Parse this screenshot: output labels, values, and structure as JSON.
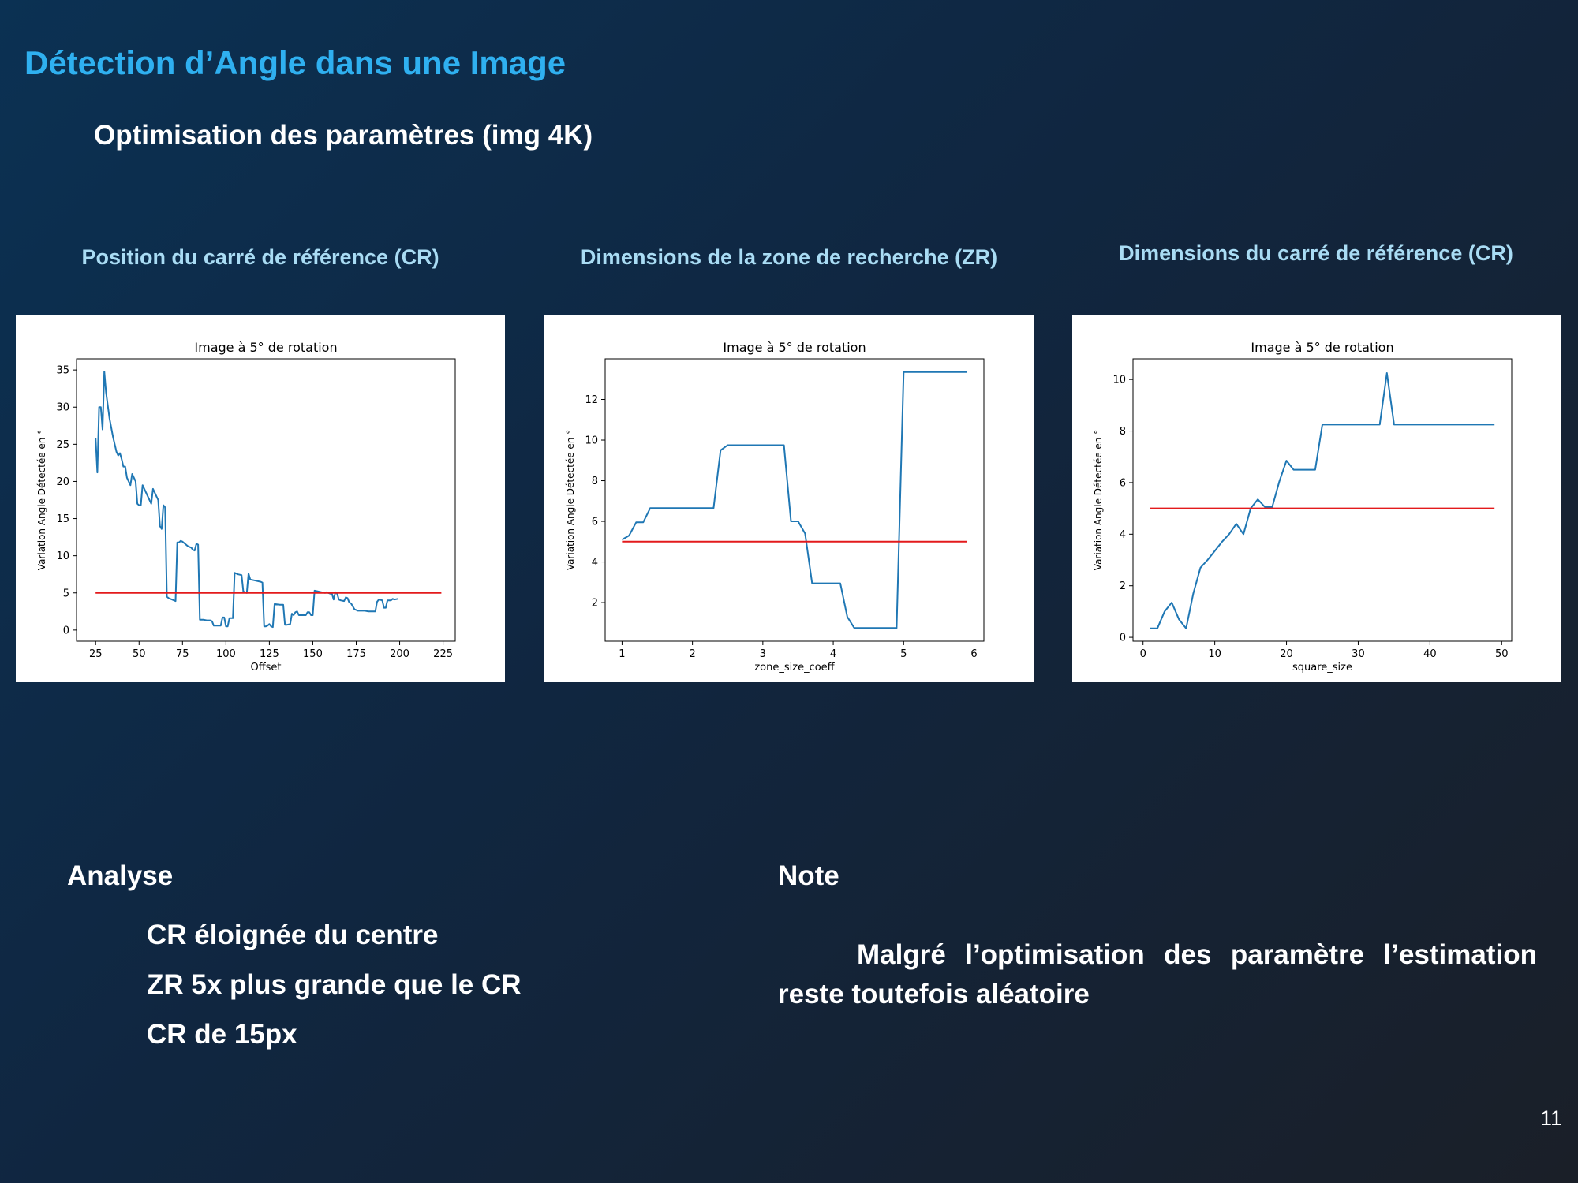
{
  "slide": {
    "title": "Détection d’Angle dans une Image",
    "subtitle": "Optimisation des paramètres (img 4K)",
    "page_number": "11"
  },
  "panels": [
    {
      "heading": "Position du carré de référence (CR)"
    },
    {
      "heading": "Dimensions de la zone de recherche (ZR)"
    },
    {
      "heading": "Dimensions du carré de référence (CR)"
    }
  ],
  "analysis": {
    "heading": "Analyse",
    "items": [
      "CR éloignée du centre",
      "ZR 5x plus grande que le CR",
      "CR de 15px"
    ]
  },
  "note": {
    "heading": "Note",
    "text": "Malgré l’optimisation des paramètre l’estimation reste toutefois aléatoire"
  },
  "colors": {
    "background_start": "#0b3153",
    "background_end": "#1a1f28",
    "title": "#2fb0f0",
    "panel_heading": "#a9dcf4",
    "series_line": "#1f77b4",
    "reference_line": "#e31a1c"
  },
  "chart_data": [
    {
      "type": "line",
      "title": "Image à 5° de rotation",
      "xlabel": "Offset",
      "ylabel": "Variation Angle Détectée en °",
      "xlim": [
        14,
        232
      ],
      "ylim": [
        -1.5,
        36.5
      ],
      "xticks": [
        25,
        50,
        75,
        100,
        125,
        150,
        175,
        200,
        225
      ],
      "yticks": [
        0,
        5,
        10,
        15,
        20,
        25,
        30,
        35
      ],
      "grid": false,
      "series": [
        {
          "role": "measured",
          "color": "#1f77b4",
          "points": [
            [
              25,
              25.8
            ],
            [
              26,
              21.2
            ],
            [
              27,
              30
            ],
            [
              28,
              30
            ],
            [
              29,
              27
            ],
            [
              30,
              34.8
            ],
            [
              31,
              32
            ],
            [
              33,
              28.5
            ],
            [
              35,
              26
            ],
            [
              37,
              24
            ],
            [
              38,
              23.5
            ],
            [
              39,
              23.8
            ],
            [
              40,
              23
            ],
            [
              41,
              22
            ],
            [
              42,
              22
            ],
            [
              43,
              20.5
            ],
            [
              44,
              20
            ],
            [
              45,
              19.5
            ],
            [
              46,
              21
            ],
            [
              47,
              20.5
            ],
            [
              48,
              20
            ],
            [
              49,
              17
            ],
            [
              50,
              16.8
            ],
            [
              51,
              16.8
            ],
            [
              52,
              19.5
            ],
            [
              53,
              19
            ],
            [
              55,
              18
            ],
            [
              57,
              17
            ],
            [
              58,
              19
            ],
            [
              59,
              18.5
            ],
            [
              60,
              18
            ],
            [
              61,
              17.5
            ],
            [
              62,
              14
            ],
            [
              63,
              13.6
            ],
            [
              64,
              16.8
            ],
            [
              65,
              16.5
            ],
            [
              66,
              4.5
            ],
            [
              67,
              4.3
            ],
            [
              69,
              4.1
            ],
            [
              71,
              3.9
            ],
            [
              72,
              11.8
            ],
            [
              73,
              11.8
            ],
            [
              74,
              12
            ],
            [
              75,
              11.9
            ],
            [
              76,
              11.7
            ],
            [
              77,
              11.5
            ],
            [
              78,
              11.3
            ],
            [
              79,
              11.2
            ],
            [
              80,
              11.1
            ],
            [
              81,
              10.8
            ],
            [
              82,
              10.7
            ],
            [
              83,
              11.6
            ],
            [
              84,
              11.5
            ],
            [
              85,
              1.4
            ],
            [
              87,
              1.4
            ],
            [
              89,
              1.3
            ],
            [
              91,
              1.3
            ],
            [
              92,
              1.2
            ],
            [
              93,
              0.6
            ],
            [
              95,
              0.6
            ],
            [
              97,
              0.6
            ],
            [
              98,
              1.7
            ],
            [
              99,
              1.7
            ],
            [
              100,
              0.5
            ],
            [
              101,
              0.5
            ],
            [
              102,
              1.6
            ],
            [
              104,
              1.6
            ],
            [
              105,
              7.7
            ],
            [
              107,
              7.5
            ],
            [
              109,
              7.4
            ],
            [
              110,
              5.2
            ],
            [
              112,
              5
            ],
            [
              113,
              7.6
            ],
            [
              114,
              6.8
            ],
            [
              116,
              6.7
            ],
            [
              118,
              6.6
            ],
            [
              120,
              6.5
            ],
            [
              121,
              6.4
            ],
            [
              122,
              0.5
            ],
            [
              123,
              0.5
            ],
            [
              124,
              0.6
            ],
            [
              125,
              0.8
            ],
            [
              126,
              0.5
            ],
            [
              127,
              0.4
            ],
            [
              128,
              3.5
            ],
            [
              131,
              3.4
            ],
            [
              133,
              3.4
            ],
            [
              134,
              0.7
            ],
            [
              135,
              0.7
            ],
            [
              137,
              0.8
            ],
            [
              138,
              2.2
            ],
            [
              139,
              2
            ],
            [
              140,
              2.4
            ],
            [
              141,
              2.5
            ],
            [
              142,
              2
            ],
            [
              146,
              2
            ],
            [
              147,
              2.4
            ],
            [
              148,
              2.4
            ],
            [
              149,
              2
            ],
            [
              150,
              2
            ],
            [
              151,
              5.3
            ],
            [
              153,
              5.2
            ],
            [
              155,
              5.1
            ],
            [
              157,
              5
            ],
            [
              158,
              5.1
            ],
            [
              159,
              5
            ],
            [
              160,
              4.9
            ],
            [
              161,
              4.9
            ],
            [
              162,
              4.1
            ],
            [
              163,
              5.1
            ],
            [
              164,
              4.9
            ],
            [
              165,
              4.1
            ],
            [
              166,
              4
            ],
            [
              168,
              3.9
            ],
            [
              169,
              4.4
            ],
            [
              170,
              4.3
            ],
            [
              171,
              3.7
            ],
            [
              172,
              3.6
            ],
            [
              173,
              3.2
            ],
            [
              174,
              2.8
            ],
            [
              176,
              2.6
            ],
            [
              178,
              2.6
            ],
            [
              180,
              2.6
            ],
            [
              182,
              2.5
            ],
            [
              184,
              2.5
            ],
            [
              186,
              2.5
            ],
            [
              187,
              3.8
            ],
            [
              188,
              4.1
            ],
            [
              190,
              4
            ],
            [
              191,
              3
            ],
            [
              192,
              3
            ],
            [
              193,
              4
            ],
            [
              195,
              4
            ],
            [
              196,
              4.2
            ],
            [
              197,
              4.1
            ],
            [
              199,
              4.2
            ]
          ]
        },
        {
          "role": "reference",
          "color": "#e31a1c",
          "points": [
            [
              25,
              5
            ],
            [
              224,
              5
            ]
          ]
        }
      ]
    },
    {
      "type": "line",
      "title": "Image à 5° de rotation",
      "xlabel": "zone_size_coeff",
      "ylabel": "Variation Angle Détectée en °",
      "xlim": [
        0.76,
        6.14
      ],
      "ylim": [
        0.1,
        14.0
      ],
      "xticks": [
        1,
        2,
        3,
        4,
        5,
        6
      ],
      "yticks": [
        2,
        4,
        6,
        8,
        10,
        12
      ],
      "grid": false,
      "series": [
        {
          "role": "measured",
          "color": "#1f77b4",
          "points": [
            [
              1,
              5.1
            ],
            [
              1.1,
              5.3
            ],
            [
              1.2,
              5.95
            ],
            [
              1.3,
              5.95
            ],
            [
              1.4,
              6.65
            ],
            [
              1.6,
              6.65
            ],
            [
              1.8,
              6.65
            ],
            [
              2,
              6.65
            ],
            [
              2.2,
              6.65
            ],
            [
              2.3,
              6.65
            ],
            [
              2.4,
              9.5
            ],
            [
              2.5,
              9.75
            ],
            [
              2.7,
              9.75
            ],
            [
              2.9,
              9.75
            ],
            [
              3.1,
              9.75
            ],
            [
              3.3,
              9.75
            ],
            [
              3.4,
              6.0
            ],
            [
              3.5,
              6.0
            ],
            [
              3.6,
              5.4
            ],
            [
              3.7,
              2.95
            ],
            [
              3.9,
              2.95
            ],
            [
              4.1,
              2.95
            ],
            [
              4.2,
              1.3
            ],
            [
              4.3,
              0.75
            ],
            [
              4.5,
              0.75
            ],
            [
              4.7,
              0.75
            ],
            [
              4.9,
              0.75
            ],
            [
              5,
              13.35
            ],
            [
              5.2,
              13.35
            ],
            [
              5.4,
              13.35
            ],
            [
              5.6,
              13.35
            ],
            [
              5.8,
              13.35
            ],
            [
              5.9,
              13.35
            ]
          ]
        },
        {
          "role": "reference",
          "color": "#e31a1c",
          "points": [
            [
              1,
              5
            ],
            [
              5.9,
              5
            ]
          ]
        }
      ]
    },
    {
      "type": "line",
      "title": "Image à 5° de rotation",
      "xlabel": "square_size",
      "ylabel": "Variation Angle Détectée en °",
      "xlim": [
        -1.4,
        51.4
      ],
      "ylim": [
        -0.15,
        10.8
      ],
      "xticks": [
        0,
        10,
        20,
        30,
        40,
        50
      ],
      "yticks": [
        0,
        2,
        4,
        6,
        8,
        10
      ],
      "grid": false,
      "series": [
        {
          "role": "measured",
          "color": "#1f77b4",
          "points": [
            [
              1,
              0.35
            ],
            [
              2,
              0.35
            ],
            [
              3,
              1
            ],
            [
              4,
              1.35
            ],
            [
              5,
              0.7
            ],
            [
              6,
              0.35
            ],
            [
              7,
              1.7
            ],
            [
              8,
              2.7
            ],
            [
              9,
              3
            ],
            [
              10,
              3.35
            ],
            [
              11,
              3.7
            ],
            [
              12,
              4
            ],
            [
              13,
              4.4
            ],
            [
              14,
              4
            ],
            [
              15,
              5
            ],
            [
              16,
              5.35
            ],
            [
              17,
              5.05
            ],
            [
              18,
              5.05
            ],
            [
              19,
              6.05
            ],
            [
              20,
              6.85
            ],
            [
              21,
              6.5
            ],
            [
              22,
              6.5
            ],
            [
              23,
              6.5
            ],
            [
              24,
              6.5
            ],
            [
              25,
              8.25
            ],
            [
              27,
              8.25
            ],
            [
              29,
              8.25
            ],
            [
              31,
              8.25
            ],
            [
              33,
              8.25
            ],
            [
              34,
              10.25
            ],
            [
              35,
              8.25
            ],
            [
              37,
              8.25
            ],
            [
              39,
              8.25
            ],
            [
              41,
              8.25
            ],
            [
              43,
              8.25
            ],
            [
              45,
              8.25
            ],
            [
              47,
              8.25
            ],
            [
              49,
              8.25
            ]
          ]
        },
        {
          "role": "reference",
          "color": "#e31a1c",
          "points": [
            [
              1,
              5
            ],
            [
              49,
              5
            ]
          ]
        }
      ]
    }
  ]
}
